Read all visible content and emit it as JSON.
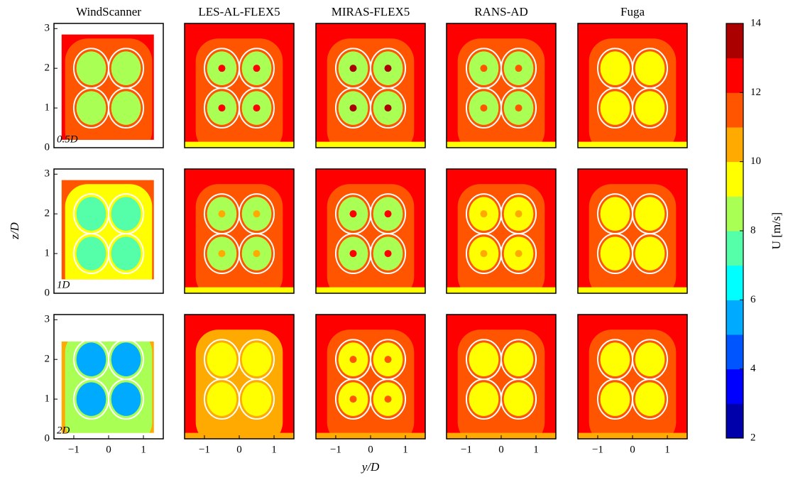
{
  "chart_data": {
    "type": "contour",
    "x_label": "y/D",
    "y_label": "z/D",
    "columns": [
      "WindScanner",
      "LES-AL-FLEX5",
      "MIRAS-FLEX5",
      "RANS-AD",
      "Fuga"
    ],
    "rows": [
      "0.5D",
      "1D",
      "2D"
    ],
    "xlim": [
      -1.57,
      1.57
    ],
    "xticks": [
      {
        "value": -1,
        "label": "−1"
      },
      0,
      1
    ],
    "ylim": [
      0,
      3.13
    ],
    "yticks": [
      0,
      1,
      2,
      3
    ],
    "rotor_diameter": 1,
    "rotors": [
      {
        "y": -0.5,
        "z": 1
      },
      {
        "y": 0.5,
        "z": 1
      },
      {
        "y": -0.5,
        "z": 2
      },
      {
        "y": 0.5,
        "z": 2
      }
    ],
    "colorbar": {
      "label": "U [m/s]",
      "lim": [
        2,
        14
      ],
      "levels": [
        2,
        3,
        4,
        5,
        6,
        7,
        8,
        9,
        10,
        11,
        12,
        13,
        14
      ],
      "ticks": [
        2,
        4,
        6,
        8,
        10,
        12,
        14
      ]
    },
    "panels": [
      [
        {
          "ambient": 12,
          "mid": 11,
          "wake": 8.5,
          "hub": null,
          "ground": 10.5,
          "extent": {
            "y": [
              -1.35,
              1.3
            ],
            "z": [
              0.2,
              2.85
            ]
          }
        },
        {
          "ambient": 12.5,
          "mid": 11.5,
          "wake": 8,
          "hub": 12.5,
          "ground": 9.5
        },
        {
          "ambient": 12.5,
          "mid": 11.5,
          "wake": 8,
          "hub": 13.5,
          "ground": 9.5
        },
        {
          "ambient": 12.5,
          "mid": 11,
          "wake": 8.5,
          "hub": 11.5,
          "ground": 9.5
        },
        {
          "ambient": 12.5,
          "mid": 11,
          "wake": 9.5,
          "hub": null,
          "ground": 9.5
        }
      ],
      [
        {
          "ambient": 11,
          "mid": 9.5,
          "wake": 7,
          "hub": null,
          "ground": 9.5,
          "extent": {
            "y": [
              -1.35,
              1.3
            ],
            "z": [
              0.35,
              2.85
            ]
          }
        },
        {
          "ambient": 12.5,
          "mid": 11.5,
          "wake": 8.5,
          "hub": 10.5,
          "ground": 9.5
        },
        {
          "ambient": 12.5,
          "mid": 11,
          "wake": 8.5,
          "hub": 12.5,
          "ground": 9.5
        },
        {
          "ambient": 12.5,
          "mid": 11,
          "wake": 9,
          "hub": 10.5,
          "ground": 9.5
        },
        {
          "ambient": 12.5,
          "mid": 11,
          "wake": 9,
          "hub": null,
          "ground": 9.5
        }
      ],
      [
        {
          "ambient": 10.5,
          "mid": 8,
          "wake": 5.5,
          "hub": null,
          "ground": 9.5,
          "extent": {
            "y": [
              -1.35,
              1.3
            ],
            "z": [
              0.15,
              2.45
            ]
          }
        },
        {
          "ambient": 12.5,
          "mid": 10.5,
          "wake": 9.5,
          "hub": null,
          "ground": 10
        },
        {
          "ambient": 12.5,
          "mid": 11,
          "wake": 9,
          "hub": 11.5,
          "ground": 10
        },
        {
          "ambient": 12.5,
          "mid": 11,
          "wake": 9.5,
          "hub": null,
          "ground": 10
        },
        {
          "ambient": 12.5,
          "mid": 11,
          "wake": 9,
          "hub": null,
          "ground": 10
        }
      ]
    ]
  }
}
